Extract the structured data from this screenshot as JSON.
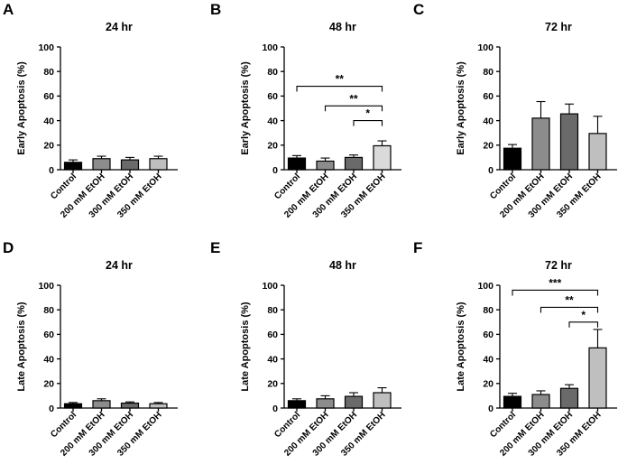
{
  "colors": {
    "control": "#000000",
    "etoh200": "#8c8c8c",
    "etoh300": "#6a6a6a",
    "etoh350": "#bfbfbf",
    "etoh350_light": "#dadada"
  },
  "chart_data": [
    {
      "type": "bar",
      "panel": "A",
      "title": "24 hr",
      "ylabel": "Early Apoptosis (%)",
      "ylim": [
        0,
        100
      ],
      "yticks": [
        "0",
        "20",
        "40",
        "60",
        "80",
        "100"
      ],
      "categories": [
        "Control",
        "200 mM EtOH",
        "300 mM EtOH",
        "350 mM EtOH"
      ],
      "values": [
        6,
        9,
        8,
        9
      ],
      "errors": [
        2,
        2,
        2,
        2
      ],
      "fills": [
        "control",
        "etoh200",
        "etoh300",
        "etoh350"
      ],
      "significance": []
    },
    {
      "type": "bar",
      "panel": "B",
      "title": "48 hr",
      "ylabel": "Early Apoptosis (%)",
      "ylim": [
        0,
        100
      ],
      "yticks": [
        "0",
        "20",
        "40",
        "60",
        "80",
        "100"
      ],
      "categories": [
        "Control",
        "200 mM EtOH",
        "300 mM EtOH",
        "350 mM EtOH"
      ],
      "values": [
        9.5,
        7,
        10,
        19.5
      ],
      "errors": [
        2,
        2.5,
        2,
        4
      ],
      "fills": [
        "control",
        "etoh200",
        "etoh300",
        "etoh350_light"
      ],
      "significance": [
        {
          "from": 0,
          "to": 3,
          "y": 68,
          "label": "**"
        },
        {
          "from": 1,
          "to": 3,
          "y": 52,
          "label": "**"
        },
        {
          "from": 2,
          "to": 3,
          "y": 40,
          "label": "*"
        }
      ]
    },
    {
      "type": "bar",
      "panel": "C",
      "title": "72 hr",
      "ylabel": "Early Apoptosis (%)",
      "ylim": [
        0,
        100
      ],
      "yticks": [
        "0",
        "20",
        "40",
        "60",
        "80",
        "100"
      ],
      "categories": [
        "Control",
        "200 mM EtOH",
        "300 mM EtOH",
        "350 mM EtOH"
      ],
      "values": [
        17.5,
        42,
        45.5,
        29.5
      ],
      "errors": [
        3,
        13.5,
        8,
        14
      ],
      "fills": [
        "control",
        "etoh200",
        "etoh300",
        "etoh350"
      ],
      "significance": []
    },
    {
      "type": "bar",
      "panel": "D",
      "title": "24 hr",
      "ylabel": "Late Apoptosis (%)",
      "ylim": [
        0,
        100
      ],
      "yticks": [
        "0",
        "20",
        "40",
        "60",
        "80",
        "100"
      ],
      "categories": [
        "Control",
        "200 mM EtOH",
        "300 mM EtOH",
        "350 mM EtOH"
      ],
      "values": [
        3.5,
        6,
        4,
        3.5
      ],
      "errors": [
        1,
        1.5,
        1,
        1
      ],
      "fills": [
        "control",
        "etoh200",
        "etoh300",
        "etoh350"
      ],
      "significance": []
    },
    {
      "type": "bar",
      "panel": "E",
      "title": "48 hr",
      "ylabel": "Late Apoptosis (%)",
      "ylim": [
        0,
        100
      ],
      "yticks": [
        "0",
        "20",
        "40",
        "60",
        "80",
        "100"
      ],
      "categories": [
        "Control",
        "200 mM EtOH",
        "300 mM EtOH",
        "350 mM EtOH"
      ],
      "values": [
        6,
        7.5,
        9.5,
        12.5
      ],
      "errors": [
        1.5,
        2.5,
        3,
        4
      ],
      "fills": [
        "control",
        "etoh200",
        "etoh300",
        "etoh350"
      ],
      "significance": []
    },
    {
      "type": "bar",
      "panel": "F",
      "title": "72 hr",
      "ylabel": "Late Apoptosis (%)",
      "ylim": [
        0,
        100
      ],
      "yticks": [
        "0",
        "20",
        "40",
        "60",
        "80",
        "100"
      ],
      "categories": [
        "Control",
        "200 mM EtOH",
        "300 mM EtOH",
        "350 mM EtOH"
      ],
      "values": [
        9.5,
        11,
        16,
        49
      ],
      "errors": [
        2.5,
        3,
        3,
        15
      ],
      "fills": [
        "control",
        "etoh200",
        "etoh300",
        "etoh350"
      ],
      "significance": [
        {
          "from": 0,
          "to": 3,
          "y": 96,
          "label": "***"
        },
        {
          "from": 1,
          "to": 3,
          "y": 82,
          "label": "**"
        },
        {
          "from": 2,
          "to": 3,
          "y": 70,
          "label": "*"
        }
      ]
    }
  ]
}
